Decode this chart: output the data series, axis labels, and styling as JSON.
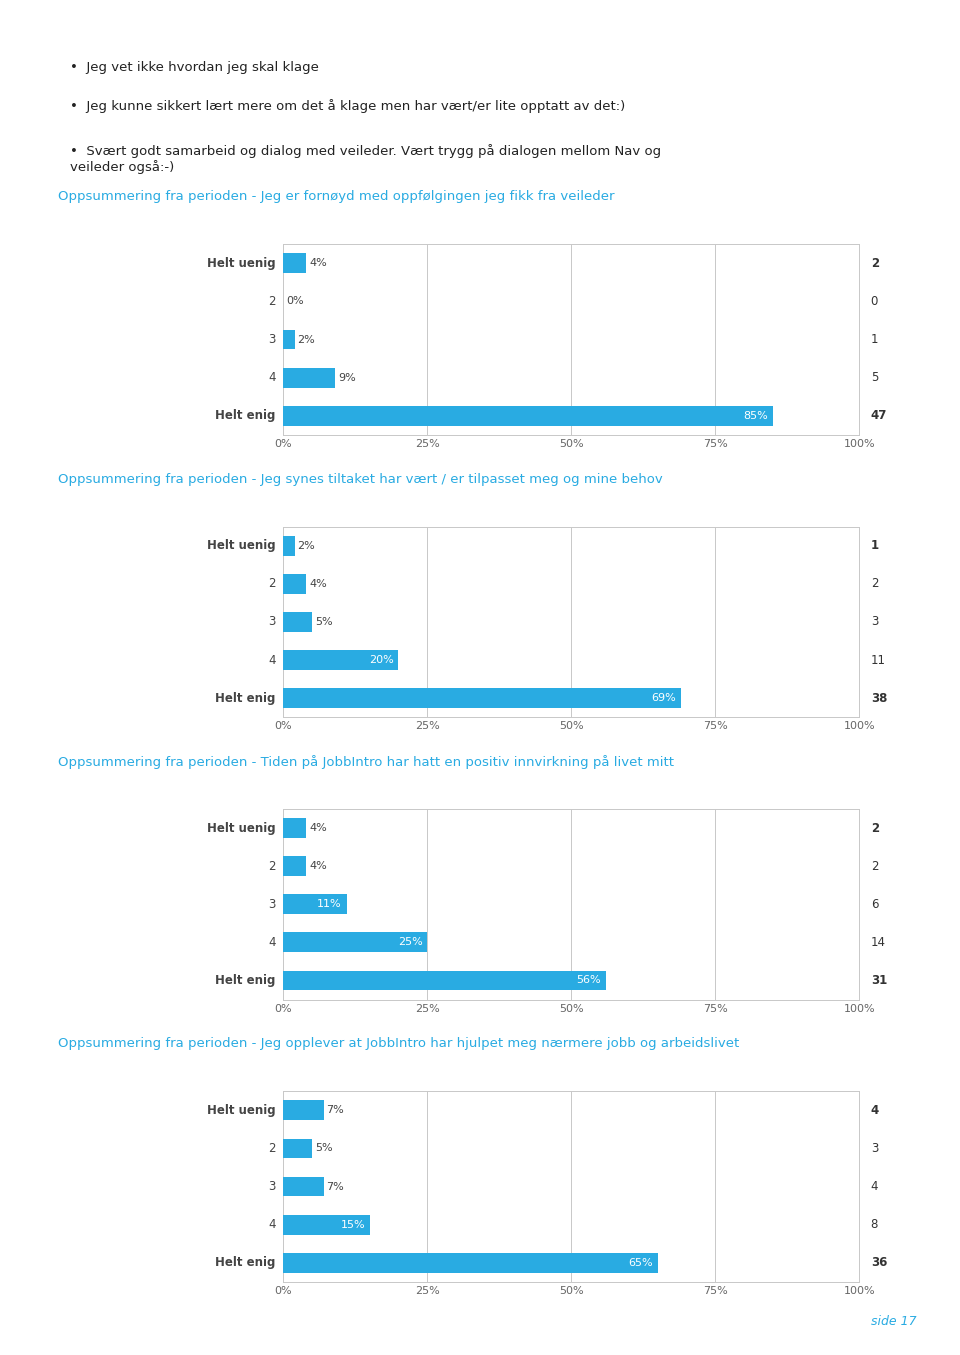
{
  "bullet_text_lines": [
    "Jeg vet ikke hvordan jeg skal klage",
    "Jeg kunne sikkert lært mere om det å klage men har vært/er lite opptatt av det:)",
    "Svært godt samarbeid og dialog med veileder. Vært trygg på dialogen mellom Nav og\nveileder også:-)"
  ],
  "charts": [
    {
      "title": "Oppsummering fra perioden - Jeg er fornøyd med oppfølgingen jeg fikk fra veileder",
      "categories": [
        "Helt uenig",
        "2",
        "3",
        "4",
        "Helt enig"
      ],
      "cat_bold": [
        true,
        false,
        false,
        false,
        true
      ],
      "values": [
        4,
        0,
        2,
        9,
        85
      ],
      "counts": [
        2,
        0,
        1,
        5,
        47
      ],
      "bar_color": "#29ABE2"
    },
    {
      "title": "Oppsummering fra perioden - Jeg synes tiltaket har vært / er tilpasset meg og mine behov",
      "categories": [
        "Helt uenig",
        "2",
        "3",
        "4",
        "Helt enig"
      ],
      "cat_bold": [
        true,
        false,
        false,
        false,
        true
      ],
      "values": [
        2,
        4,
        5,
        20,
        69
      ],
      "counts": [
        1,
        2,
        3,
        11,
        38
      ],
      "bar_color": "#29ABE2"
    },
    {
      "title": "Oppsummering fra perioden - Tiden på JobbIntro har hatt en positiv innvirkning på livet mitt",
      "categories": [
        "Helt uenig",
        "2",
        "3",
        "4",
        "Helt enig"
      ],
      "cat_bold": [
        true,
        false,
        false,
        false,
        true
      ],
      "values": [
        4,
        4,
        11,
        25,
        56
      ],
      "counts": [
        2,
        2,
        6,
        14,
        31
      ],
      "bar_color": "#29ABE2"
    },
    {
      "title": "Oppsummering fra perioden - Jeg opplever at JobbIntro har hjulpet meg nærmere jobb og arbeidslivet",
      "categories": [
        "Helt uenig",
        "2",
        "3",
        "4",
        "Helt enig"
      ],
      "cat_bold": [
        true,
        false,
        false,
        false,
        true
      ],
      "values": [
        7,
        5,
        7,
        15,
        65
      ],
      "counts": [
        4,
        3,
        4,
        8,
        36
      ],
      "bar_color": "#29ABE2"
    }
  ],
  "title_color": "#29ABE2",
  "label_color": "#444444",
  "count_color": "#333333",
  "background_color": "#FFFFFF",
  "grid_color": "#C8C8C8",
  "page_label": "side 17",
  "page_label_color": "#29ABE2"
}
